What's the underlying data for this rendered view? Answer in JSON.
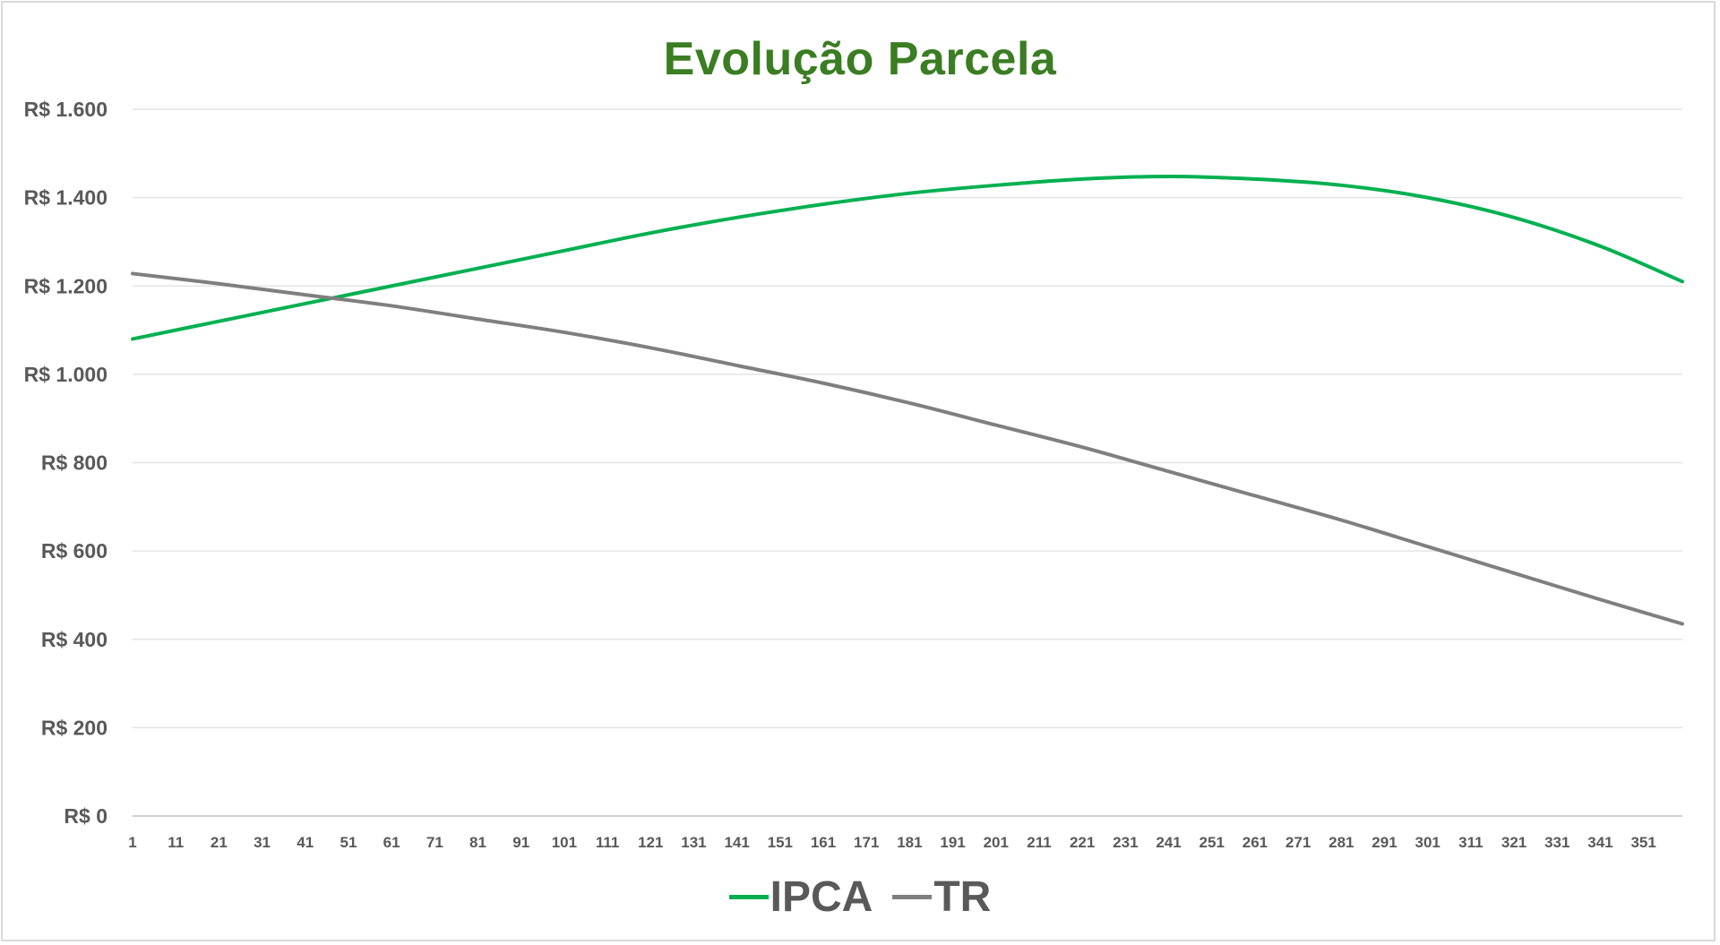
{
  "chart_data": {
    "type": "line",
    "title": "Evolução Parcela",
    "xlabel": "",
    "ylabel": "",
    "x_range": [
      1,
      360
    ],
    "x_tick_labels": [
      "1",
      "11",
      "21",
      "31",
      "41",
      "51",
      "61",
      "71",
      "81",
      "91",
      "101",
      "111",
      "121",
      "131",
      "141",
      "151",
      "161",
      "171",
      "181",
      "191",
      "201",
      "211",
      "221",
      "231",
      "241",
      "251",
      "261",
      "271",
      "281",
      "291",
      "301",
      "311",
      "321",
      "331",
      "341",
      "351"
    ],
    "ylim": [
      0,
      1600
    ],
    "y_tick_values": [
      0,
      200,
      400,
      600,
      800,
      1000,
      1200,
      1400,
      1600
    ],
    "y_tick_labels": [
      "R$ 0",
      "R$ 200",
      "R$ 400",
      "R$ 600",
      "R$ 800",
      "R$ 1.000",
      "R$ 1.200",
      "R$ 1.400",
      "R$ 1.600"
    ],
    "grid": true,
    "legend_position": "bottom",
    "series": [
      {
        "name": "IPCA",
        "color": "#00b050",
        "x": [
          1,
          21,
          41,
          61,
          81,
          101,
          121,
          141,
          161,
          181,
          201,
          221,
          241,
          261,
          281,
          301,
          321,
          341,
          360
        ],
        "values": [
          1080,
          1120,
          1160,
          1200,
          1240,
          1280,
          1320,
          1355,
          1385,
          1410,
          1428,
          1442,
          1448,
          1442,
          1428,
          1400,
          1355,
          1290,
          1210
        ]
      },
      {
        "name": "TR",
        "color": "#7f7f7f",
        "x": [
          1,
          21,
          41,
          61,
          81,
          101,
          121,
          141,
          161,
          181,
          201,
          221,
          241,
          261,
          281,
          301,
          321,
          341,
          360
        ],
        "values": [
          1228,
          1205,
          1180,
          1155,
          1125,
          1095,
          1060,
          1020,
          980,
          935,
          885,
          835,
          780,
          725,
          670,
          610,
          550,
          490,
          435
        ]
      }
    ]
  }
}
